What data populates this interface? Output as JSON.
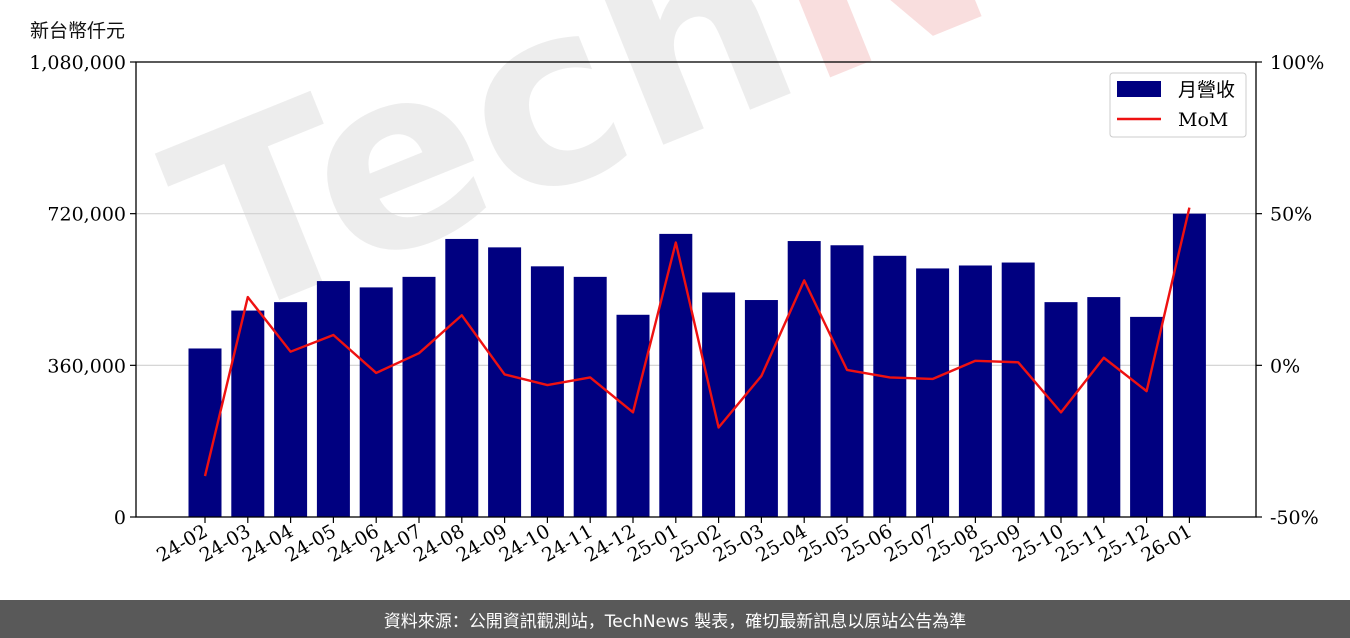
{
  "unit_label": "新台幣仟元",
  "footer_text": "資料來源：公開資訊觀測站，TechNews 製表，確切最新訊息以原站公告為準",
  "watermark": {
    "part1": "Tech",
    "part2": "News"
  },
  "colors": {
    "bar": "#000080",
    "line": "#ee1111",
    "grid": "#d0d0d0",
    "footer_bg": "#595959"
  },
  "chart_data": {
    "type": "bar",
    "categories": [
      "24-02",
      "24-03",
      "24-04",
      "24-05",
      "24-06",
      "24-07",
      "24-08",
      "24-09",
      "24-10",
      "24-11",
      "24-12",
      "25-01",
      "25-02",
      "25-03",
      "25-04",
      "25-05",
      "25-06",
      "25-07",
      "25-08",
      "25-09",
      "25-10",
      "25-11",
      "25-12",
      "26-01"
    ],
    "series": [
      {
        "name": "月營收",
        "type": "bar",
        "axis": "left",
        "values": [
          400000,
          490000,
          510000,
          560000,
          545000,
          570000,
          660000,
          640000,
          595000,
          570000,
          480000,
          672000,
          533000,
          515000,
          655000,
          645000,
          620000,
          590000,
          597000,
          604000,
          510000,
          522000,
          475000,
          720000
        ]
      },
      {
        "name": "MoM",
        "type": "line",
        "axis": "right",
        "values": [
          -36.5,
          22.5,
          4.5,
          10.0,
          -2.5,
          4.0,
          16.5,
          -3.0,
          -6.5,
          -4.0,
          -15.5,
          40.5,
          -20.5,
          -3.5,
          28.0,
          -1.5,
          -4.0,
          -4.5,
          1.5,
          1.0,
          -15.5,
          2.5,
          -8.5,
          52.0
        ]
      }
    ],
    "y_left": {
      "lim": [
        0,
        1080000
      ],
      "ticks": [
        "0",
        "360,000",
        "720,000",
        "1,080,000"
      ],
      "tick_values": [
        0,
        360000,
        720000,
        1080000
      ]
    },
    "y_right": {
      "lim": [
        -50,
        100
      ],
      "ticks": [
        "-50%",
        "0%",
        "50%",
        "100%"
      ],
      "tick_values": [
        -50,
        0,
        50,
        100
      ]
    },
    "grid": "horizontal",
    "legend": "top-right"
  }
}
